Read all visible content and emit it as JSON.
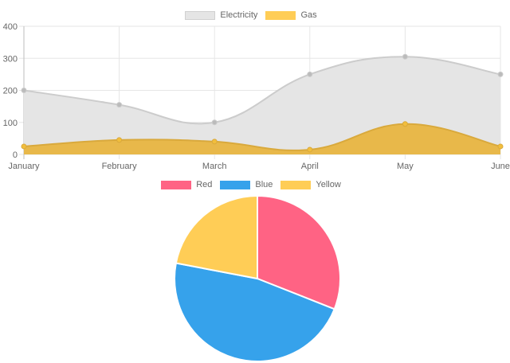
{
  "chart_data": [
    {
      "type": "area",
      "title": "",
      "xlabel": "",
      "ylabel": "",
      "categories": [
        "January",
        "February",
        "March",
        "April",
        "May",
        "June"
      ],
      "series": [
        {
          "name": "Electricity",
          "values": [
            200,
            155,
            100,
            250,
            305,
            250
          ],
          "fill": "#e5e5e5",
          "stroke": "#cccccc",
          "point": "#bbbbbb"
        },
        {
          "name": "Gas",
          "values": [
            25,
            45,
            40,
            15,
            95,
            25
          ],
          "fill": "#e8b84a",
          "stroke": "#d9a93c",
          "point": "#f2be3c"
        }
      ],
      "ylim": [
        0,
        400
      ],
      "yticks": [
        0,
        100,
        200,
        300,
        400
      ],
      "grid": true,
      "legend_position": "top"
    },
    {
      "type": "pie",
      "title": "",
      "categories": [
        "Red",
        "Blue",
        "Yellow"
      ],
      "values": [
        31,
        47,
        22
      ],
      "value_unit": "percent (estimated from slice angles)",
      "colors": [
        "#ff6384",
        "#36a2eb",
        "#ffcd56"
      ],
      "legend_position": "top"
    }
  ],
  "line_legend": [
    {
      "label": "Electricity",
      "color": "#e5e5e5",
      "border": "#cccccc"
    },
    {
      "label": "Gas",
      "color": "#ffcd56",
      "border": "#ffcd56"
    }
  ],
  "pie_legend": [
    {
      "label": "Red",
      "color": "#ff6384"
    },
    {
      "label": "Blue",
      "color": "#36a2eb"
    },
    {
      "label": "Yellow",
      "color": "#ffcd56"
    }
  ]
}
